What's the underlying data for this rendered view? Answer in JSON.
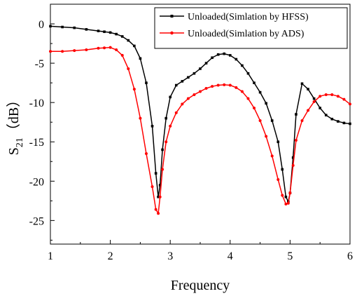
{
  "chart_data": {
    "type": "line",
    "xlabel": "Frequency",
    "ylabel": {
      "base": "S",
      "sub": "21",
      "suffix": "（dB）"
    },
    "xlim": [
      1,
      6
    ],
    "ylim": [
      -28,
      2.5
    ],
    "xticks": [
      1,
      2,
      3,
      4,
      5,
      6
    ],
    "yticks": [
      0,
      -5,
      -10,
      -15,
      -20,
      -25
    ],
    "grid": false,
    "legend_position": "top-right",
    "series": [
      {
        "name": "Unloaded(Simlation by HFSS)",
        "color": "#000000",
        "marker": "square",
        "x": [
          1.0,
          1.2,
          1.4,
          1.6,
          1.8,
          1.9,
          2.0,
          2.1,
          2.2,
          2.3,
          2.4,
          2.5,
          2.6,
          2.7,
          2.76,
          2.8,
          2.83,
          2.87,
          2.93,
          3.0,
          3.1,
          3.2,
          3.3,
          3.4,
          3.5,
          3.6,
          3.7,
          3.8,
          3.9,
          4.0,
          4.1,
          4.2,
          4.3,
          4.4,
          4.5,
          4.6,
          4.7,
          4.8,
          4.87,
          4.93,
          4.97,
          5.0,
          5.05,
          5.1,
          5.2,
          5.3,
          5.4,
          5.5,
          5.6,
          5.7,
          5.8,
          5.9,
          6.0
        ],
        "y": [
          -0.3,
          -0.4,
          -0.5,
          -0.7,
          -0.9,
          -1.0,
          -1.1,
          -1.3,
          -1.6,
          -2.1,
          -2.8,
          -4.4,
          -7.5,
          -13.0,
          -19.0,
          -22.0,
          -20.5,
          -16.0,
          -12.0,
          -9.3,
          -7.8,
          -7.3,
          -6.8,
          -6.3,
          -5.7,
          -5.0,
          -4.3,
          -3.9,
          -3.8,
          -4.0,
          -4.5,
          -5.3,
          -6.3,
          -7.5,
          -8.7,
          -10.1,
          -12.3,
          -15.0,
          -18.5,
          -22.0,
          -22.6,
          -21.5,
          -17.0,
          -11.5,
          -7.6,
          -8.3,
          -9.5,
          -10.7,
          -11.6,
          -12.1,
          -12.4,
          -12.6,
          -12.7
        ]
      },
      {
        "name": "Unloaded(Simlation by ADS)",
        "color": "#ff0000",
        "marker": "circle",
        "x": [
          1.0,
          1.2,
          1.4,
          1.6,
          1.8,
          1.9,
          2.0,
          2.1,
          2.2,
          2.3,
          2.4,
          2.5,
          2.6,
          2.7,
          2.76,
          2.8,
          2.83,
          2.87,
          2.93,
          3.0,
          3.1,
          3.2,
          3.3,
          3.4,
          3.5,
          3.6,
          3.7,
          3.8,
          3.9,
          4.0,
          4.1,
          4.2,
          4.3,
          4.4,
          4.5,
          4.6,
          4.7,
          4.8,
          4.87,
          4.93,
          4.97,
          5.0,
          5.05,
          5.1,
          5.2,
          5.3,
          5.4,
          5.5,
          5.6,
          5.7,
          5.8,
          5.9,
          6.0
        ],
        "y": [
          -3.5,
          -3.5,
          -3.4,
          -3.3,
          -3.1,
          -3.05,
          -3.0,
          -3.3,
          -4.0,
          -5.7,
          -8.3,
          -12.0,
          -16.5,
          -20.7,
          -23.6,
          -24.1,
          -22.0,
          -18.5,
          -15.0,
          -13.0,
          -11.3,
          -10.2,
          -9.5,
          -9.0,
          -8.6,
          -8.2,
          -7.95,
          -7.8,
          -7.75,
          -7.8,
          -8.1,
          -8.6,
          -9.5,
          -10.7,
          -12.3,
          -14.3,
          -16.8,
          -19.8,
          -21.8,
          -22.9,
          -22.8,
          -21.5,
          -18.0,
          -14.8,
          -12.3,
          -11.0,
          -9.9,
          -9.2,
          -9.0,
          -9.0,
          -9.2,
          -9.6,
          -10.2
        ]
      }
    ]
  }
}
